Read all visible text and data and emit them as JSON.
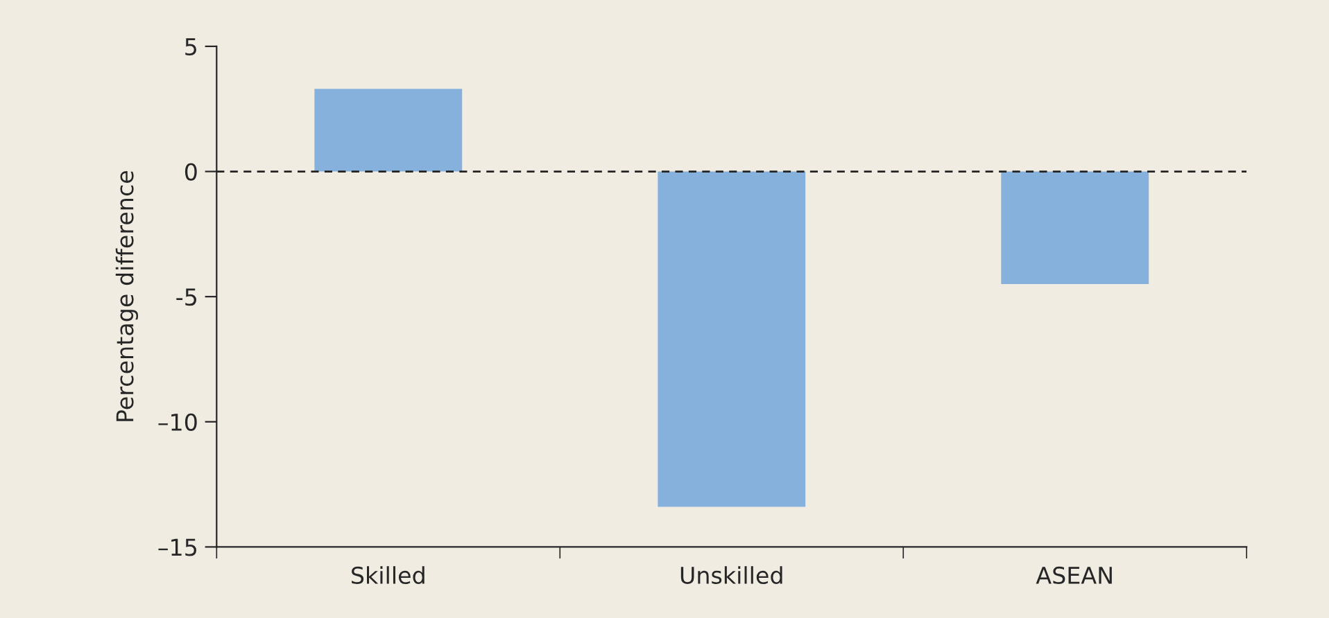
{
  "chart_data": {
    "type": "bar",
    "ylabel": "Percentage difference",
    "categories": [
      "Skilled",
      "Unskilled",
      "ASEAN"
    ],
    "values": [
      3.3,
      -13.4,
      -4.5
    ],
    "color": "#87b1dd",
    "ylim": [
      -15,
      5
    ],
    "yticks": [
      {
        "value": -15,
        "label": "–15"
      },
      {
        "value": -10,
        "label": "–10"
      },
      {
        "value": -5,
        "label": "-5"
      },
      0,
      5
    ],
    "ref_lines": [
      {
        "axis": "y",
        "value": 0,
        "line_style": "dashed",
        "color": "#222222"
      }
    ],
    "grid": false
  }
}
